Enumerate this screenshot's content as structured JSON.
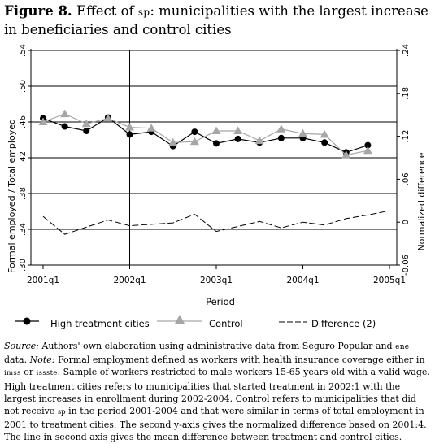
{
  "figure": {
    "label": "Figure 8.",
    "title_pre": "Effect of",
    "title_sc": "sp",
    "title_post": ": municipalities with the largest increase in beneficiaries and control cities"
  },
  "chart_data": {
    "type": "line",
    "x_tick_labels": [
      "2001q1",
      "2002q1",
      "2003q1",
      "2004q1",
      "2005q1"
    ],
    "x_ticks": [
      0,
      4,
      8,
      12,
      16
    ],
    "xlim": [
      0,
      16
    ],
    "xlabel": "Period",
    "ylabel_left": "Formal employed / Total employed",
    "ylabel_right": "Normalized difference",
    "ylim_left": [
      0.3,
      0.54
    ],
    "yticks_left": [
      "0.30",
      "0.34",
      "0.38",
      "0.42",
      "0.46",
      "0.50",
      "0.54"
    ],
    "ylim_right": [
      -0.06,
      0.24
    ],
    "yticks_right": [
      "-0.06",
      "0",
      ".06",
      ".12",
      ".18",
      ".24"
    ],
    "treatment_start": 4,
    "series": [
      {
        "name": "High treatment cities",
        "axis": "left",
        "marker": "circle",
        "color": "#000000",
        "x": [
          0,
          1,
          2,
          3,
          4,
          5,
          6,
          7,
          8,
          9,
          10,
          11,
          12,
          13,
          14,
          15
        ],
        "values": [
          0.464,
          0.455,
          0.45,
          0.465,
          0.446,
          0.449,
          0.433,
          0.449,
          0.436,
          0.441,
          0.437,
          0.442,
          0.442,
          0.437,
          0.426,
          0.434
        ]
      },
      {
        "name": "Control",
        "axis": "left",
        "marker": "triangle",
        "color": "#a6a6a6",
        "x": [
          0,
          1,
          2,
          3,
          4,
          5,
          6,
          7,
          8,
          9,
          10,
          11,
          12,
          13,
          14,
          15
        ],
        "values": [
          0.46,
          0.469,
          0.458,
          0.464,
          0.454,
          0.453,
          0.437,
          0.438,
          0.45,
          0.45,
          0.439,
          0.452,
          0.447,
          0.446,
          0.423,
          0.428
        ]
      },
      {
        "name": "Difference (2)",
        "axis": "right",
        "marker": "none",
        "color": "#000000",
        "x": [
          0,
          1,
          2,
          3,
          4,
          5,
          6,
          7,
          8,
          9,
          10,
          11,
          12,
          13,
          14,
          15,
          16
        ],
        "values": [
          0.008,
          -0.017,
          -0.007,
          0.003,
          -0.005,
          -0.003,
          -0.001,
          0.011,
          -0.013,
          -0.006,
          0.001,
          -0.008,
          0.0,
          -0.004,
          0.005,
          0.01,
          0.016
        ]
      }
    ],
    "legend": {
      "position": "bottom",
      "labels": [
        "High treatment cities",
        "Control",
        "Difference (2)"
      ]
    },
    "grid": "horizontal"
  },
  "source": {
    "source_label": "Source:",
    "source_text": " Authors' own elaboration using administrative data from Seguro Popular and ",
    "ene": "ene",
    "data_text": " data. ",
    "note_label": "Note:",
    "note_1": " Formal employment defined as workers with health insurance coverage either in ",
    "imss": "imss",
    "or": " or ",
    "issste": "issste",
    "note_2": ". Sample of workers restricted to male workers 15-65 years old with a valid wage. High treatment cities refers to municipalities that started treatment in 2002:1 with the largest increases in enrollment during 2002-2004. Control refers to municipalities that did not receive ",
    "sp": "sp",
    "note_3": " in the period 2001-2004 and that were similar in terms of total employment in 2001 to treatment cities. The second y-axis gives the normalized difference based on 2001:4. The line in second axis gives the mean difference between treatment and control cities."
  }
}
